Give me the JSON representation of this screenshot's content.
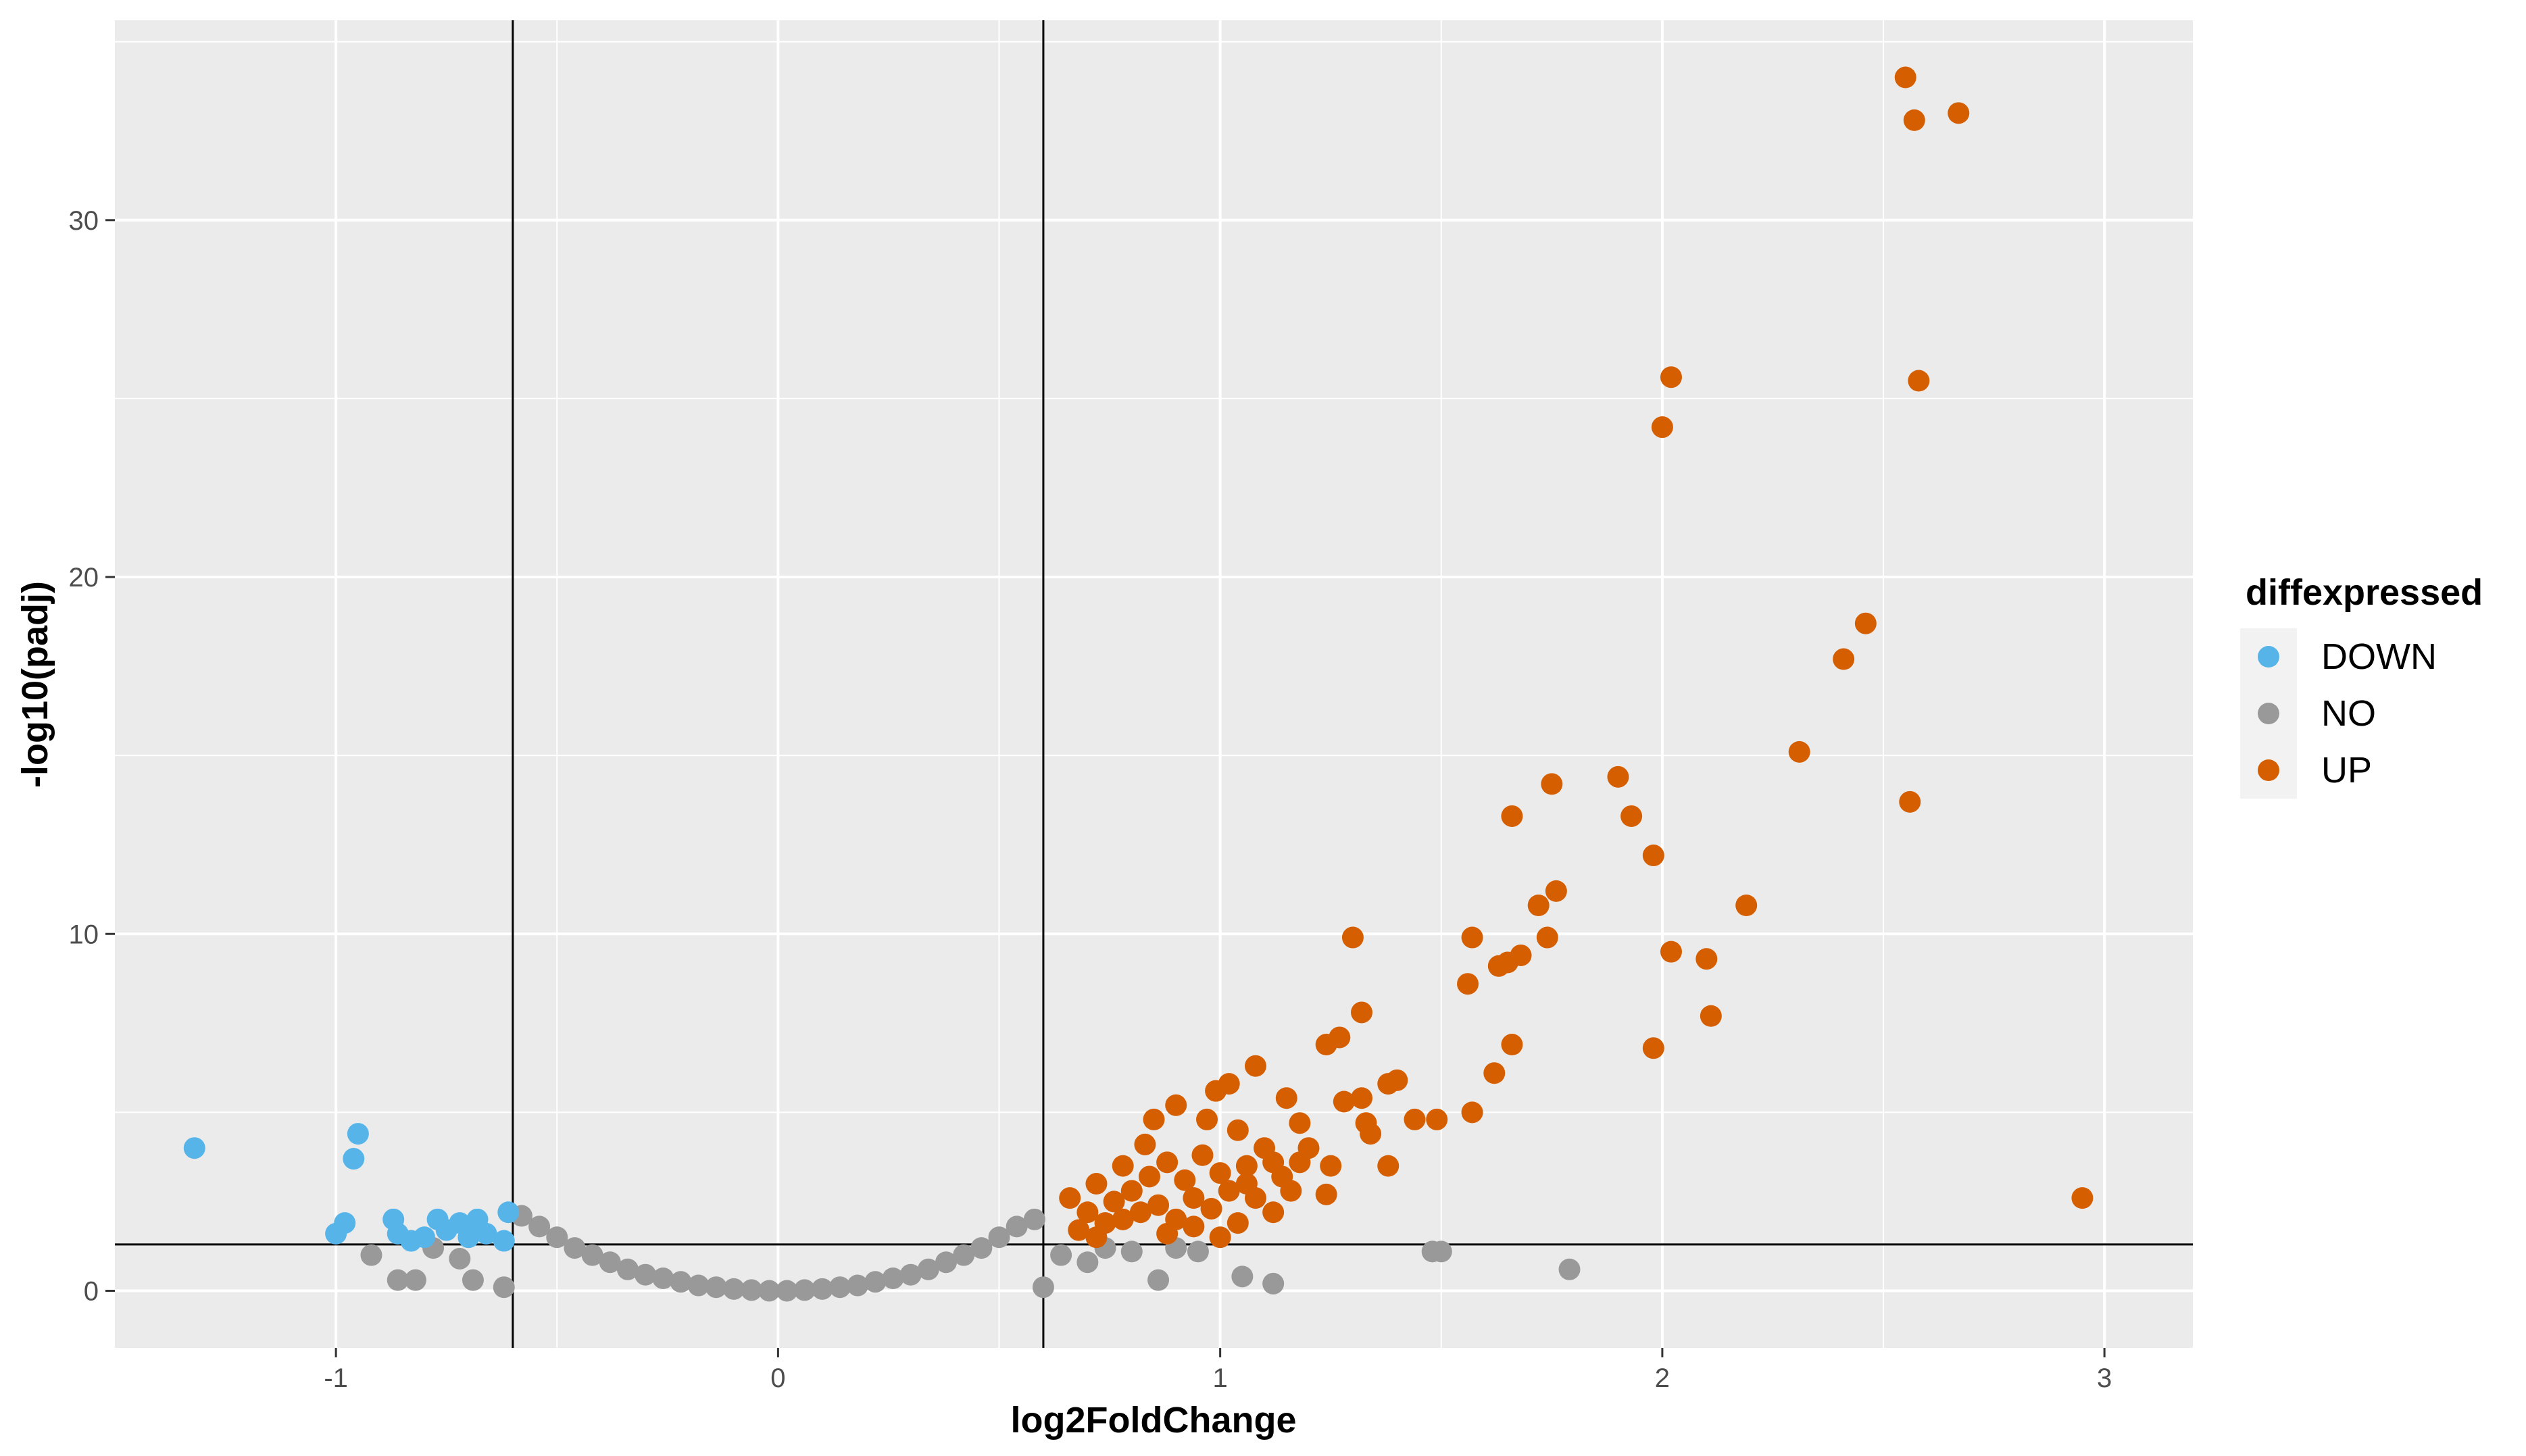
{
  "chart_data": {
    "type": "scatter",
    "title": "",
    "xlabel": "log2FoldChange",
    "ylabel": "-log10(padj)",
    "xlim": [
      -1.5,
      3.2
    ],
    "ylim": [
      -1.6,
      35.6
    ],
    "x_ticks": [
      -1,
      0,
      1,
      2,
      3
    ],
    "y_ticks": [
      0,
      10,
      20,
      30
    ],
    "x_tick_labels": [
      "-1",
      "0",
      "1",
      "2",
      "3"
    ],
    "y_tick_labels": [
      "0",
      "10",
      "20",
      "30"
    ],
    "grid": true,
    "reference_lines": {
      "vertical": [
        -0.6,
        0.6
      ],
      "horizontal": [
        1.3
      ]
    },
    "legend": {
      "title": "diffexpressed",
      "position": "right",
      "entries": [
        "DOWN",
        "NO",
        "UP"
      ]
    },
    "series": [
      {
        "name": "DOWN",
        "color": "#56B4E9",
        "points": [
          [
            -1.32,
            4.0
          ],
          [
            -0.95,
            4.4
          ],
          [
            -0.96,
            3.7
          ],
          [
            -0.98,
            1.9
          ],
          [
            -1.0,
            1.6
          ],
          [
            -0.87,
            2.0
          ],
          [
            -0.86,
            1.6
          ],
          [
            -0.83,
            1.4
          ],
          [
            -0.8,
            1.5
          ],
          [
            -0.77,
            2.0
          ],
          [
            -0.75,
            1.7
          ],
          [
            -0.72,
            1.9
          ],
          [
            -0.7,
            1.5
          ],
          [
            -0.68,
            2.0
          ],
          [
            -0.66,
            1.6
          ],
          [
            -0.62,
            1.4
          ],
          [
            -0.61,
            2.2
          ]
        ]
      },
      {
        "name": "NO",
        "color": "#999999",
        "points": [
          [
            -0.92,
            1.0
          ],
          [
            -0.86,
            0.3
          ],
          [
            -0.82,
            0.3
          ],
          [
            -0.78,
            1.2
          ],
          [
            -0.72,
            0.9
          ],
          [
            -0.69,
            0.3
          ],
          [
            -0.62,
            0.1
          ],
          [
            -0.58,
            2.1
          ],
          [
            -0.54,
            1.8
          ],
          [
            -0.5,
            1.5
          ],
          [
            -0.46,
            1.2
          ],
          [
            -0.42,
            1.0
          ],
          [
            -0.38,
            0.8
          ],
          [
            -0.34,
            0.6
          ],
          [
            -0.3,
            0.45
          ],
          [
            -0.26,
            0.35
          ],
          [
            -0.22,
            0.25
          ],
          [
            -0.18,
            0.15
          ],
          [
            -0.14,
            0.1
          ],
          [
            -0.1,
            0.05
          ],
          [
            -0.06,
            0.02
          ],
          [
            -0.02,
            0.0
          ],
          [
            0.02,
            0.0
          ],
          [
            0.06,
            0.02
          ],
          [
            0.1,
            0.05
          ],
          [
            0.14,
            0.1
          ],
          [
            0.18,
            0.15
          ],
          [
            0.22,
            0.25
          ],
          [
            0.26,
            0.35
          ],
          [
            0.3,
            0.45
          ],
          [
            0.34,
            0.6
          ],
          [
            0.38,
            0.8
          ],
          [
            0.42,
            1.0
          ],
          [
            0.46,
            1.2
          ],
          [
            0.5,
            1.5
          ],
          [
            0.54,
            1.8
          ],
          [
            0.58,
            2.0
          ],
          [
            0.6,
            0.1
          ],
          [
            0.64,
            1.0
          ],
          [
            0.7,
            0.8
          ],
          [
            0.74,
            1.2
          ],
          [
            0.8,
            1.1
          ],
          [
            0.86,
            0.3
          ],
          [
            0.9,
            1.2
          ],
          [
            0.95,
            1.1
          ],
          [
            1.05,
            0.4
          ],
          [
            1.12,
            0.2
          ],
          [
            1.48,
            1.1
          ],
          [
            1.5,
            1.1
          ],
          [
            1.79,
            0.6
          ]
        ]
      },
      {
        "name": "UP",
        "color": "#D55E00",
        "points": [
          [
            2.55,
            34.0
          ],
          [
            2.67,
            33.0
          ],
          [
            2.57,
            32.8
          ],
          [
            2.02,
            25.6
          ],
          [
            2.58,
            25.5
          ],
          [
            2.0,
            24.2
          ],
          [
            2.46,
            18.7
          ],
          [
            2.41,
            17.7
          ],
          [
            2.31,
            15.1
          ],
          [
            1.9,
            14.4
          ],
          [
            1.75,
            14.2
          ],
          [
            2.56,
            13.7
          ],
          [
            1.66,
            13.3
          ],
          [
            1.93,
            13.3
          ],
          [
            1.98,
            12.2
          ],
          [
            1.76,
            11.2
          ],
          [
            2.19,
            10.8
          ],
          [
            1.72,
            10.8
          ],
          [
            1.3,
            9.9
          ],
          [
            1.57,
            9.9
          ],
          [
            1.74,
            9.9
          ],
          [
            2.02,
            9.5
          ],
          [
            2.1,
            9.3
          ],
          [
            1.68,
            9.4
          ],
          [
            1.65,
            9.2
          ],
          [
            1.63,
            9.1
          ],
          [
            1.56,
            8.6
          ],
          [
            1.32,
            7.8
          ],
          [
            2.11,
            7.7
          ],
          [
            1.27,
            7.1
          ],
          [
            1.66,
            6.9
          ],
          [
            1.98,
            6.8
          ],
          [
            1.24,
            6.9
          ],
          [
            1.08,
            6.3
          ],
          [
            1.62,
            6.1
          ],
          [
            1.4,
            5.9
          ],
          [
            1.38,
            5.8
          ],
          [
            1.02,
            5.8
          ],
          [
            0.99,
            5.6
          ],
          [
            1.15,
            5.4
          ],
          [
            1.28,
            5.3
          ],
          [
            1.32,
            5.4
          ],
          [
            1.57,
            5.0
          ],
          [
            1.44,
            4.8
          ],
          [
            1.49,
            4.8
          ],
          [
            1.33,
            4.7
          ],
          [
            0.9,
            5.2
          ],
          [
            0.85,
            4.8
          ],
          [
            0.97,
            4.8
          ],
          [
            1.18,
            4.7
          ],
          [
            1.34,
            4.4
          ],
          [
            1.04,
            4.5
          ],
          [
            1.2,
            4.0
          ],
          [
            0.83,
            4.1
          ],
          [
            1.38,
            3.5
          ],
          [
            1.25,
            3.5
          ],
          [
            1.12,
            3.6
          ],
          [
            1.24,
            2.7
          ],
          [
            2.95,
            2.6
          ],
          [
            1.06,
            3.0
          ],
          [
            0.66,
            2.6
          ],
          [
            0.7,
            2.2
          ],
          [
            0.72,
            3.0
          ],
          [
            0.74,
            1.9
          ],
          [
            0.76,
            2.5
          ],
          [
            0.78,
            2.0
          ],
          [
            0.8,
            2.8
          ],
          [
            0.82,
            2.2
          ],
          [
            0.84,
            3.2
          ],
          [
            0.86,
            2.4
          ],
          [
            0.88,
            3.6
          ],
          [
            0.9,
            2.0
          ],
          [
            0.92,
            3.1
          ],
          [
            0.94,
            2.6
          ],
          [
            0.96,
            3.8
          ],
          [
            0.98,
            2.3
          ],
          [
            1.0,
            3.3
          ],
          [
            1.02,
            2.8
          ],
          [
            1.04,
            1.9
          ],
          [
            1.06,
            3.5
          ],
          [
            1.08,
            2.6
          ],
          [
            1.1,
            4.0
          ],
          [
            1.12,
            2.2
          ],
          [
            1.14,
            3.2
          ],
          [
            1.0,
            1.5
          ],
          [
            0.68,
            1.7
          ],
          [
            0.72,
            1.5
          ],
          [
            0.78,
            3.5
          ],
          [
            0.88,
            1.6
          ],
          [
            0.94,
            1.8
          ],
          [
            1.16,
            2.8
          ],
          [
            1.18,
            3.6
          ]
        ]
      }
    ]
  }
}
